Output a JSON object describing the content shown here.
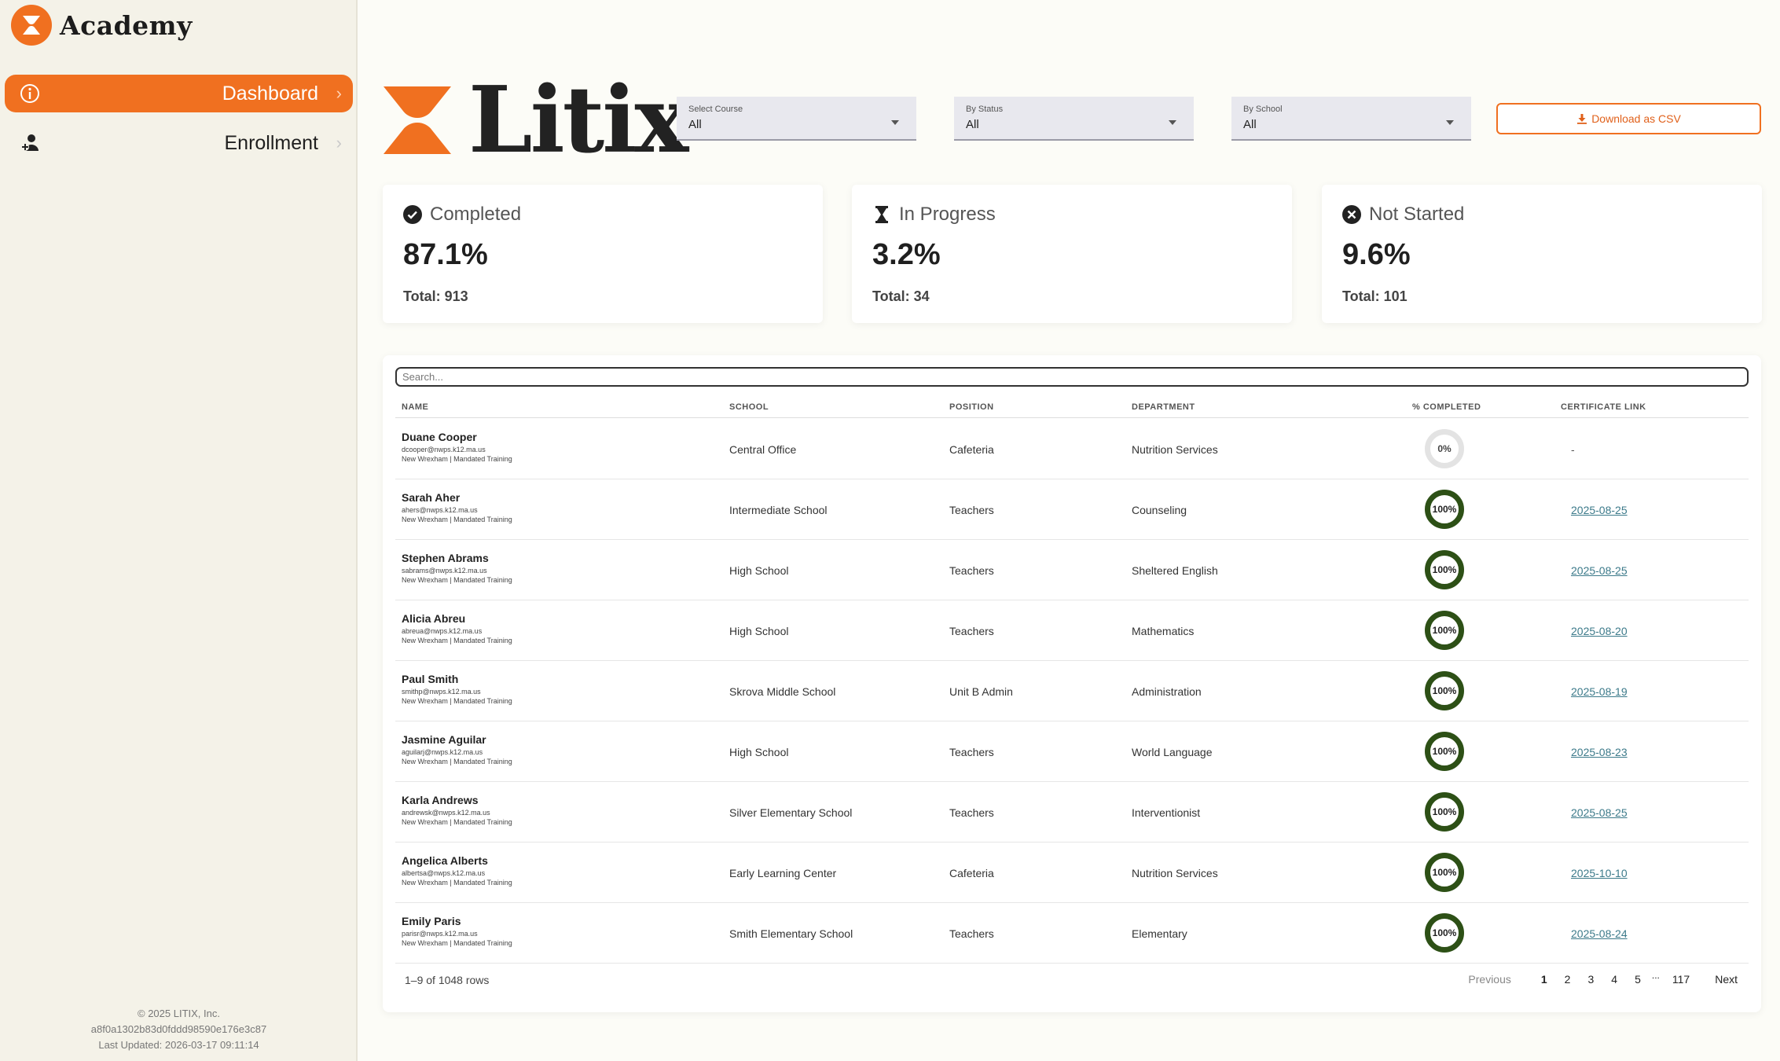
{
  "sidebar": {
    "brand": "Academy",
    "nav": [
      {
        "label": "Dashboard",
        "icon": "info-icon",
        "active": true
      },
      {
        "label": "Enrollment",
        "icon": "user-plus-icon",
        "active": false
      }
    ],
    "footer": {
      "copyright": "© 2025 LITIX, Inc.",
      "hash": "a8f0a1302b83d0fddd98590e176e3c87",
      "updated": "Last Updated: 2026-03-17 09:11:14"
    }
  },
  "header": {
    "logo_text": "Litix",
    "filters": [
      {
        "label": "Select Course",
        "value": "All"
      },
      {
        "label": "By Status",
        "value": "All"
      },
      {
        "label": "By School",
        "value": "All"
      }
    ],
    "download_label": "Download as CSV"
  },
  "stats": [
    {
      "title": "Completed",
      "icon": "check-circle-icon",
      "pct": "87.1%",
      "total": "Total: 913"
    },
    {
      "title": "In Progress",
      "icon": "hourglass-icon",
      "pct": "3.2%",
      "total": "Total: 34"
    },
    {
      "title": "Not Started",
      "icon": "x-circle-icon",
      "pct": "9.6%",
      "total": "Total: 101"
    }
  ],
  "table": {
    "search_placeholder": "Search...",
    "columns": [
      "NAME",
      "SCHOOL",
      "POSITION",
      "DEPARTMENT",
      "% COMPLETED",
      "CERTIFICATE LINK"
    ],
    "rows": [
      {
        "name": "Duane Cooper",
        "email": "dcooper@nwps.k12.ma.us",
        "org": "New Wrexham | Mandated Training",
        "school": "Central Office",
        "position": "Cafeteria",
        "department": "Nutrition Services",
        "completed": "0%",
        "certificate": "-"
      },
      {
        "name": "Sarah Aher",
        "email": "ahers@nwps.k12.ma.us",
        "org": "New Wrexham | Mandated Training",
        "school": "Intermediate School",
        "position": "Teachers",
        "department": "Counseling",
        "completed": "100%",
        "certificate": "2025-08-25"
      },
      {
        "name": "Stephen Abrams",
        "email": "sabrams@nwps.k12.ma.us",
        "org": "New Wrexham | Mandated Training",
        "school": "High School",
        "position": "Teachers",
        "department": "Sheltered English",
        "completed": "100%",
        "certificate": "2025-08-25"
      },
      {
        "name": "Alicia Abreu",
        "email": "abreua@nwps.k12.ma.us",
        "org": "New Wrexham | Mandated Training",
        "school": "High School",
        "position": "Teachers",
        "department": "Mathematics",
        "completed": "100%",
        "certificate": "2025-08-20"
      },
      {
        "name": "Paul Smith",
        "email": "smithp@nwps.k12.ma.us",
        "org": "New Wrexham | Mandated Training",
        "school": "Skrova Middle School",
        "position": "Unit B Admin",
        "department": "Administration",
        "completed": "100%",
        "certificate": "2025-08-19"
      },
      {
        "name": "Jasmine Aguilar",
        "email": "aguilarj@nwps.k12.ma.us",
        "org": "New Wrexham | Mandated Training",
        "school": "High School",
        "position": "Teachers",
        "department": "World Language",
        "completed": "100%",
        "certificate": "2025-08-23"
      },
      {
        "name": "Karla Andrews",
        "email": "andrewsk@nwps.k12.ma.us",
        "org": "New Wrexham | Mandated Training",
        "school": "Silver Elementary School",
        "position": "Teachers",
        "department": "Interventionist",
        "completed": "100%",
        "certificate": "2025-08-25"
      },
      {
        "name": "Angelica Alberts",
        "email": "albertsa@nwps.k12.ma.us",
        "org": "New Wrexham | Mandated Training",
        "school": "Early Learning Center",
        "position": "Cafeteria",
        "department": "Nutrition Services",
        "completed": "100%",
        "certificate": "2025-10-10"
      },
      {
        "name": "Emily Paris",
        "email": "parisr@nwps.k12.ma.us",
        "org": "New Wrexham | Mandated Training",
        "school": "Smith Elementary School",
        "position": "Teachers",
        "department": "Elementary",
        "completed": "100%",
        "certificate": "2025-08-24"
      }
    ],
    "row_count": "1–9 of 1048 rows",
    "pagination": {
      "previous": "Previous",
      "pages": [
        "1",
        "2",
        "3",
        "4",
        "5"
      ],
      "ellipsis": "...",
      "last": "117",
      "next": "Next",
      "current": "1"
    }
  },
  "colors": {
    "accent": "#f07020",
    "ring_complete": "#2d5016",
    "ring_empty": "#e3e3e3",
    "link": "#3c7a8a"
  }
}
